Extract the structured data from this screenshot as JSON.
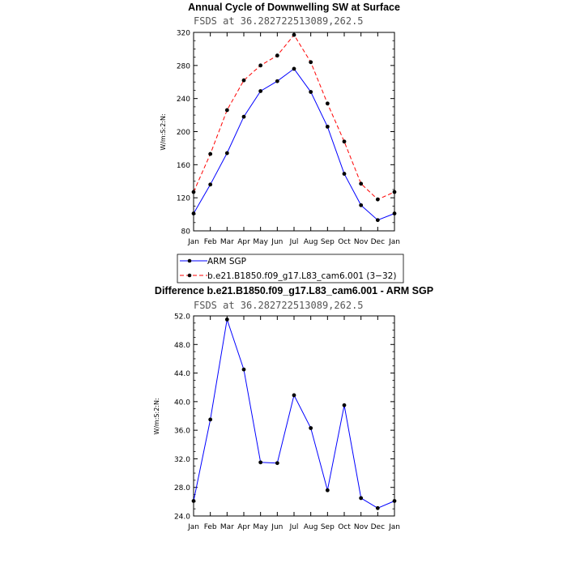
{
  "chart_data": [
    {
      "type": "line",
      "title": "Annual Cycle of Downwelling SW at Surface",
      "subtitle": "FSDS at 36.282722513089,262.5",
      "ylabel": "W/m:S:2:N:",
      "xlabel": "",
      "categories": [
        "Jan",
        "Feb",
        "Mar",
        "Apr",
        "May",
        "Jun",
        "Jul",
        "Aug",
        "Sep",
        "Oct",
        "Nov",
        "Dec",
        "Jan"
      ],
      "ylim": [
        80,
        320
      ],
      "yticks": [
        80,
        120,
        160,
        200,
        240,
        280,
        320
      ],
      "ytick_labels": [
        "80",
        "120",
        "160",
        "200",
        "240",
        "280",
        "320"
      ],
      "series": [
        {
          "name": "ARM SGP",
          "color": "#0000ff",
          "dash": "solid",
          "values": [
            101,
            136,
            174,
            218,
            249,
            261,
            276,
            248,
            206,
            149,
            111,
            93,
            101
          ]
        },
        {
          "name": "b.e21.B1850.f09_g17.L83_cam6.001 (3−32)",
          "color": "#ff0000",
          "dash": "dashed",
          "values": [
            127,
            173,
            226,
            262,
            280,
            292,
            317,
            284,
            234,
            188,
            137,
            118,
            127
          ]
        }
      ],
      "legend": {
        "placement": "bottom"
      }
    },
    {
      "type": "line",
      "title": "Difference b.e21.B1850.f09_g17.L83_cam6.001 - ARM SGP",
      "subtitle": "FSDS at 36.282722513089,262.5",
      "ylabel": "W/m:S:2:N:",
      "xlabel": "",
      "categories": [
        "Jan",
        "Feb",
        "Mar",
        "Apr",
        "May",
        "Jun",
        "Jul",
        "Aug",
        "Sep",
        "Oct",
        "Nov",
        "Dec",
        "Jan"
      ],
      "ylim": [
        24,
        52
      ],
      "yticks": [
        24,
        28,
        32,
        36,
        40,
        44,
        48,
        52
      ],
      "ytick_labels": [
        "24.0",
        "28.0",
        "32.0",
        "36.0",
        "40.0",
        "44.0",
        "48.0",
        "52.0"
      ],
      "series": [
        {
          "name": "",
          "color": "#0000ff",
          "dash": "solid",
          "values": [
            26.1,
            37.5,
            51.5,
            44.5,
            31.5,
            31.4,
            40.9,
            36.3,
            27.6,
            39.5,
            26.5,
            25.1,
            26.1
          ]
        }
      ]
    }
  ]
}
